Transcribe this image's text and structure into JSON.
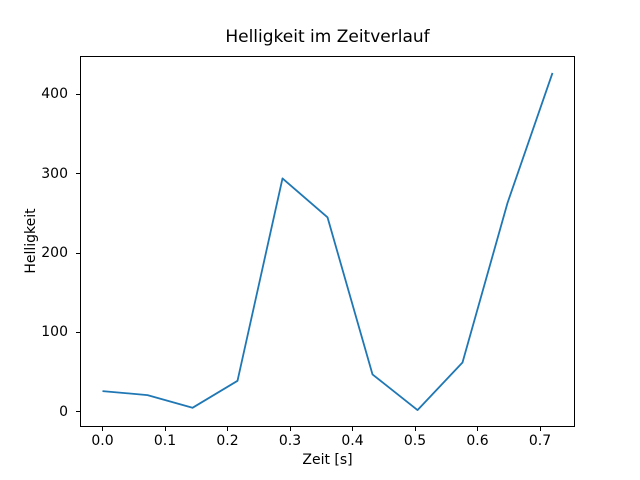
{
  "chart_data": {
    "type": "line",
    "title": "Helligkeit im Zeitverlauf",
    "xlabel": "Zeit [s]",
    "ylabel": "Helligkeit",
    "x": [
      0.0,
      0.072,
      0.144,
      0.216,
      0.288,
      0.36,
      0.432,
      0.504,
      0.576,
      0.648,
      0.72
    ],
    "y": [
      26,
      21,
      5,
      39,
      294,
      245,
      47,
      2,
      62,
      263,
      427
    ],
    "line_color": "#1f77b4",
    "axis_color": "#000000",
    "background_color": "#ffffff",
    "xlim": [
      -0.036,
      0.756
    ],
    "ylim": [
      -19.25,
      448.25
    ],
    "xticks": {
      "values": [
        0.0,
        0.1,
        0.2,
        0.3,
        0.4,
        0.5,
        0.6,
        0.7
      ],
      "labels": [
        "0.0",
        "0.1",
        "0.2",
        "0.3",
        "0.4",
        "0.5",
        "0.6",
        "0.7"
      ]
    },
    "yticks": {
      "values": [
        0,
        100,
        200,
        300,
        400
      ],
      "labels": [
        "0",
        "100",
        "200",
        "300",
        "400"
      ]
    },
    "grid": false,
    "legend": false
  }
}
